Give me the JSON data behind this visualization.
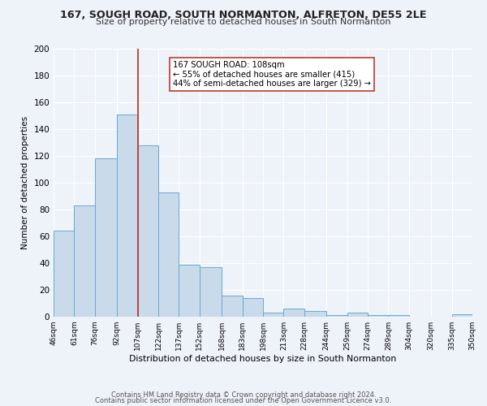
{
  "title": "167, SOUGH ROAD, SOUTH NORMANTON, ALFRETON, DE55 2LE",
  "subtitle": "Size of property relative to detached houses in South Normanton",
  "xlabel": "Distribution of detached houses by size in South Normanton",
  "ylabel": "Number of detached properties",
  "bar_color": "#c9daea",
  "bar_edge_color": "#6aaad4",
  "background_color": "#eef2f9",
  "grid_color": "#ffffff",
  "bin_edges": [
    46,
    61,
    76,
    92,
    107,
    122,
    137,
    152,
    168,
    183,
    198,
    213,
    228,
    244,
    259,
    274,
    289,
    304,
    320,
    335,
    350
  ],
  "bin_labels": [
    "46sqm",
    "61sqm",
    "76sqm",
    "92sqm",
    "107sqm",
    "122sqm",
    "137sqm",
    "152sqm",
    "168sqm",
    "183sqm",
    "198sqm",
    "213sqm",
    "228sqm",
    "244sqm",
    "259sqm",
    "274sqm",
    "289sqm",
    "304sqm",
    "320sqm",
    "335sqm",
    "350sqm"
  ],
  "counts": [
    64,
    83,
    118,
    151,
    128,
    93,
    39,
    37,
    16,
    14,
    3,
    6,
    4,
    1,
    3,
    1,
    1,
    0,
    0,
    2
  ],
  "vline_x": 107,
  "vline_color": "#c0392b",
  "annotation_line1": "167 SOUGH ROAD: 108sqm",
  "annotation_line2": "← 55% of detached houses are smaller (415)",
  "annotation_line3": "44% of semi-detached houses are larger (329) →",
  "annotation_box_color": "#ffffff",
  "annotation_box_edge": "#c0392b",
  "ylim": [
    0,
    200
  ],
  "yticks": [
    0,
    20,
    40,
    60,
    80,
    100,
    120,
    140,
    160,
    180,
    200
  ],
  "footer1": "Contains HM Land Registry data © Crown copyright and database right 2024.",
  "footer2": "Contains public sector information licensed under the Open Government Licence v3.0."
}
